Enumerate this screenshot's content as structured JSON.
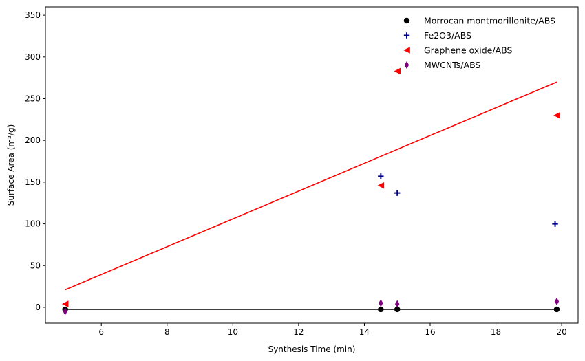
{
  "chart_data": {
    "type": "scatter",
    "xlabel": "Synthesis Time (min)",
    "ylabel": "Surface Area (m²/g)",
    "xlim": [
      4.3,
      20.5
    ],
    "ylim": [
      -19,
      360
    ],
    "xticks": [
      6,
      8,
      10,
      12,
      14,
      16,
      18,
      20
    ],
    "yticks": [
      0,
      50,
      100,
      150,
      200,
      250,
      300,
      350
    ],
    "grid": false,
    "legend_position": "top-right",
    "series": [
      {
        "name": "Morrocan montmorillonite/ABS",
        "marker": "circle",
        "color": "#000000",
        "x": [
          4.9,
          14.5,
          15.0,
          19.85
        ],
        "y": [
          -2.5,
          -2.5,
          -2.5,
          -2.5
        ]
      },
      {
        "name": "Fe2O3/ABS",
        "marker": "plus",
        "color": "#00008b",
        "x": [
          14.5,
          15.0,
          19.8
        ],
        "y": [
          157,
          137,
          100
        ]
      },
      {
        "name": "Graphene oxide/ABS",
        "marker": "triangle-left",
        "color": "#ff0000",
        "x": [
          4.9,
          14.5,
          15.0,
          19.85
        ],
        "y": [
          4,
          146,
          283,
          230
        ]
      },
      {
        "name": "MWCNTs/ABS",
        "marker": "thin-diamond",
        "color": "#800080",
        "x": [
          4.9,
          14.5,
          15.0,
          19.85
        ],
        "y": [
          -5,
          5,
          4,
          7
        ]
      }
    ],
    "trendlines": [
      {
        "color": "#ff0000",
        "x": [
          4.9,
          19.85
        ],
        "y": [
          21,
          270
        ]
      },
      {
        "color": "#000000",
        "x": [
          4.9,
          19.85
        ],
        "y": [
          -2.5,
          -2.5
        ]
      }
    ]
  }
}
